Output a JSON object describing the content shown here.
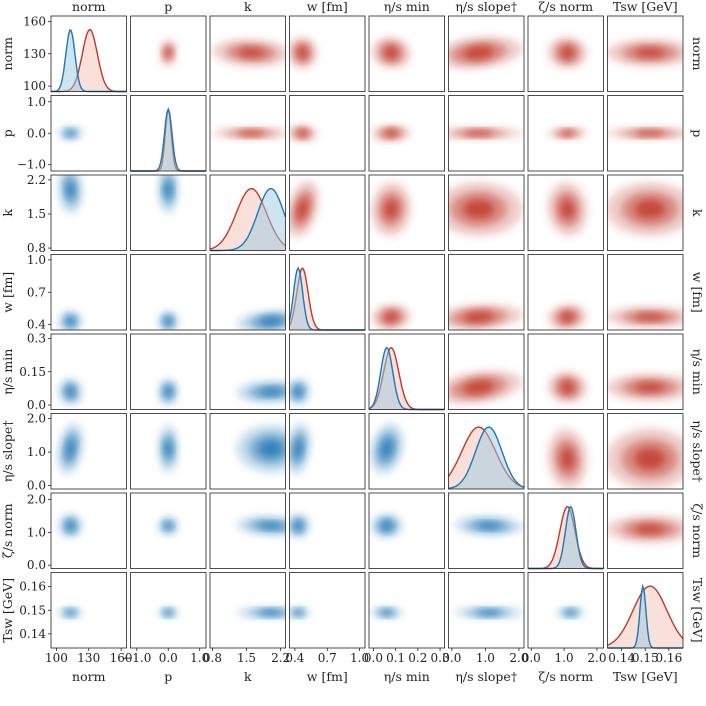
{
  "chart_data": {
    "type": "corner-pairplot",
    "colors": {
      "blue": "#1f77b4",
      "red": "#c0392b",
      "blue_fill": "#9ecae1",
      "red_fill": "#f4c2b8"
    },
    "parameters": [
      {
        "key": "norm",
        "title": "norm",
        "xlabel": "norm",
        "ylabel": "norm",
        "right_label": "norm",
        "range": [
          95,
          165
        ],
        "ticks": [
          100,
          130,
          160
        ],
        "tick_labels": [
          "100",
          "130",
          "160"
        ]
      },
      {
        "key": "p",
        "title": "p",
        "xlabel": "p",
        "ylabel": "p",
        "right_label": "p",
        "range": [
          -1.2,
          1.2
        ],
        "ticks": [
          -1.0,
          0.0,
          1.0
        ],
        "tick_labels": [
          "−1.0",
          "0.0",
          "1.0"
        ]
      },
      {
        "key": "k",
        "title": "k",
        "xlabel": "k",
        "ylabel": "k",
        "right_label": "k",
        "range": [
          0.75,
          2.3
        ],
        "ticks": [
          0.8,
          1.5,
          2.2
        ],
        "tick_labels": [
          "0.8",
          "1.5",
          "2.2"
        ]
      },
      {
        "key": "w",
        "title": "w [fm]",
        "xlabel": "w [fm]",
        "ylabel": "w [fm]",
        "right_label": "w [fm]",
        "range": [
          0.35,
          1.05
        ],
        "ticks": [
          0.4,
          0.7,
          1.0
        ],
        "tick_labels": [
          "0.4",
          "0.7",
          "1.0"
        ]
      },
      {
        "key": "etas_min",
        "title": "η/s min",
        "xlabel": "η/s min",
        "ylabel": "η/s min",
        "right_label": "η/s min",
        "range": [
          -0.02,
          0.32
        ],
        "ticks": [
          0.0,
          0.15,
          0.3
        ],
        "tick_labels_x": [
          "0.0",
          "0.1",
          "0.2",
          "0.3"
        ],
        "ticks_x": [
          0.0,
          0.1,
          0.2,
          0.3
        ],
        "tick_labels": [
          "0.0",
          "0.15",
          "0.3"
        ]
      },
      {
        "key": "etas_slope",
        "title": "η/s slope†",
        "xlabel": "η/s slope†",
        "ylabel": "η/s slope†",
        "right_label": "η/s slope†",
        "range": [
          -0.1,
          2.15
        ],
        "ticks": [
          0.0,
          1.0,
          2.0
        ],
        "tick_labels": [
          "0.0",
          "1.0",
          "2.0"
        ]
      },
      {
        "key": "zetas_norm",
        "title": "ζ/s norm",
        "xlabel": "ζ/s norm",
        "ylabel": "ζ/s norm",
        "right_label": "ζ/s norm",
        "range": [
          -0.1,
          2.2
        ],
        "ticks": [
          0.0,
          1.0,
          2.0
        ],
        "tick_labels": [
          "0.0",
          "1.0",
          "2.0"
        ]
      },
      {
        "key": "Tsw",
        "title": "Tsw [GeV]",
        "xlabel": "Tsw [GeV]",
        "ylabel": "Tsw [GeV]",
        "right_label": "Tsw [GeV]",
        "range": [
          0.134,
          0.166
        ],
        "ticks": [
          0.14,
          0.15,
          0.16
        ],
        "tick_labels": [
          "0.14",
          "0.15",
          "0.16"
        ],
        "tick_labels_x": [
          "0.14",
          "0.15",
          "0.16"
        ]
      }
    ],
    "posterior_modes": {
      "blue_lower": {
        "norm": 113,
        "p": 0.0,
        "k": 2.0,
        "w": 0.43,
        "etas_min": 0.06,
        "etas_slope": 1.1,
        "zetas_norm": 1.2,
        "Tsw": 0.149
      },
      "red_upper": {
        "norm": 131,
        "p": 0.0,
        "k": 1.6,
        "w": 0.47,
        "etas_min": 0.08,
        "etas_slope": 0.8,
        "zetas_norm": 1.1,
        "Tsw": 0.152
      }
    },
    "legend": "none"
  }
}
